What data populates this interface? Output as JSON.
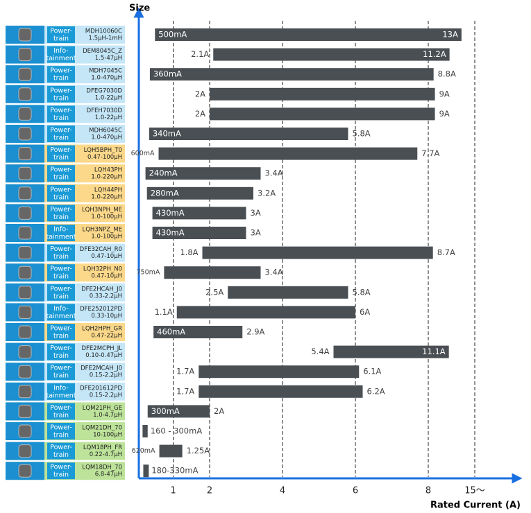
{
  "chart_data": {
    "type": "range_bar",
    "y_label": "Size",
    "x_label": "Rated Current (A)",
    "color": "#4a4f54",
    "grid": true,
    "xlim": [
      0,
      15
    ],
    "xticks": [
      1,
      2,
      4,
      6,
      8,
      {
        "value": 15,
        "label": "15〜"
      }
    ],
    "categories": [
      "MDH10060C",
      "DEM8045C_Z",
      "MDH7045C",
      "DFEG7030D",
      "DFEH7030D",
      "MDH6045C",
      "LQH5BPH_T0",
      "LQH43PH",
      "LQH44PH",
      "LQH3NPH_ME",
      "LQH3NPZ_ME",
      "DFE32CAH_R0",
      "LQH32PH_N0",
      "DFE2HCAH_J0",
      "DFE252012PD",
      "LQH2HPH_GR",
      "DFE2MCPH_JL",
      "DFE2MCAH_J0",
      "DFE201612PD",
      "LQM21PH_GE",
      "LQM21DH_70",
      "LQM18PH_FR",
      "LQM18DH_70"
    ],
    "specs": [
      "1.5μH-1mH",
      "1.5-47μH",
      "1.0-470μH",
      "1.0-22μH",
      "1.0-22μH",
      "1.0-470μH",
      "0.47-100μH",
      "1.0-220μH",
      "1.0-220μH",
      "1.0-100μH",
      "1.0-100μH",
      "0.47-10μH",
      "0.47-10μH",
      "0.33-2.2μH",
      "0.33-10μH",
      "0.47-22μH",
      "0.10-0.47μH",
      "0.15-2.2μH",
      "0.15-2.2μH",
      "1.0-4.7μH",
      "10-100μH",
      "0.22-4.7μH",
      "6.8-47μH"
    ],
    "applications": [
      "Power-train",
      "Info-tainment",
      "Power-train",
      "Power-train",
      "Power-train",
      "Power-train",
      "Power-train",
      "Power-train",
      "Power-train",
      "Power-train",
      "Info-tainment",
      "Power-train",
      "Power-train",
      "Power-train",
      "Info-tainment",
      "Power-train",
      "Power-train",
      "Power-train",
      "Info-tainment",
      "Power-train",
      "Power-train",
      "Power-train",
      "Power-train"
    ],
    "row_colors": [
      "#c4e6f7",
      "#c4e6f7",
      "#c4e6f7",
      "#c4e6f7",
      "#c4e6f7",
      "#c4e6f7",
      "#fcd98a",
      "#fcd98a",
      "#fcd98a",
      "#fcd98a",
      "#fcd98a",
      "#c4e6f7",
      "#fcd98a",
      "#c4e6f7",
      "#c4e6f7",
      "#fcd98a",
      "#c4e6f7",
      "#c4e6f7",
      "#c4e6f7",
      "#bde39a",
      "#bde39a",
      "#bde39a",
      "#bde39a"
    ],
    "low": [
      0.5,
      2.1,
      0.36,
      2,
      2,
      0.34,
      0.6,
      0.24,
      0.28,
      0.43,
      0.43,
      1.8,
      0.75,
      2.5,
      1.1,
      0.46,
      5.4,
      1.7,
      1.7,
      0.3,
      0.16,
      0.62,
      0.18
    ],
    "high": [
      13,
      11.2,
      8.8,
      9,
      9,
      5.8,
      7.7,
      3.4,
      3.2,
      3,
      3,
      8.7,
      3.4,
      5.8,
      6,
      2.9,
      11.1,
      6.1,
      6.2,
      2,
      0.3,
      1.25,
      0.33
    ],
    "low_labels": [
      "500mA",
      "2.1A",
      "360mA",
      "2A",
      "2A",
      "340mA",
      "600mA",
      "240mA",
      "280mA",
      "430mA",
      "430mA",
      "1.8A",
      "750mA",
      "2.5A",
      "1.1A",
      "460mA",
      "5.4A",
      "1.7A",
      "1.7A",
      "300mA",
      "160 - 300mA",
      "620mA",
      "180-330mA"
    ],
    "high_labels": [
      "13A",
      "11.2A",
      "8.8A",
      "9A",
      "9A",
      "5.8A",
      "7.7A",
      "3.4A",
      "3.2A",
      "3A",
      "3A",
      "8.7A",
      "3.4A",
      "5.8A",
      "6A",
      "2.9A",
      "11.1A",
      "6.1A",
      "6.2A",
      "2A",
      null,
      "1.25A",
      null
    ]
  }
}
